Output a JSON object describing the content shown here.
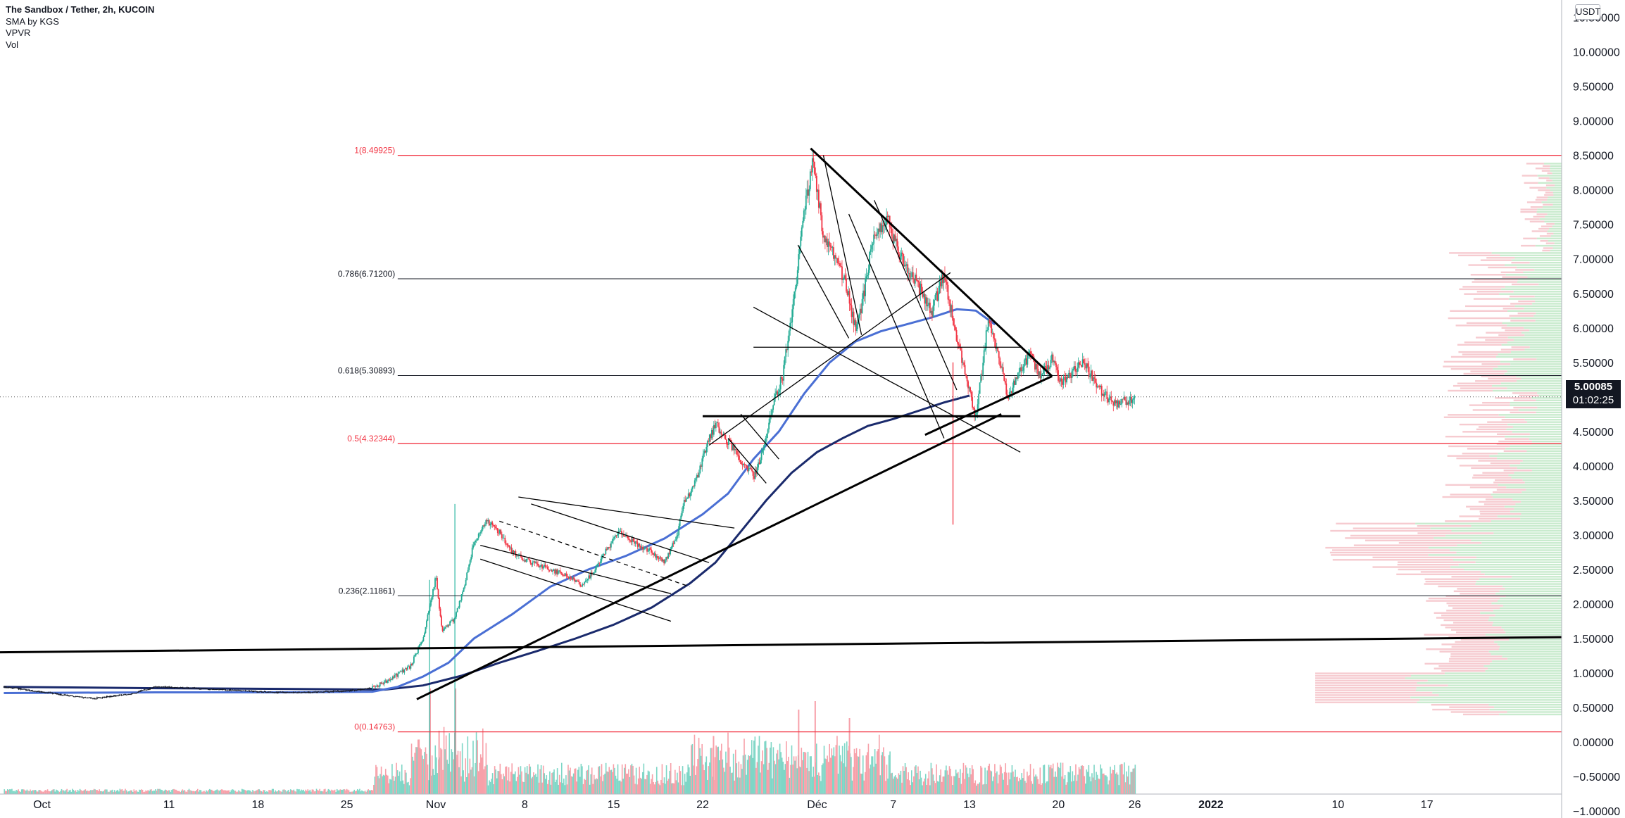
{
  "legend": {
    "title": "The Sandbox / Tether, 2h, KUCOIN",
    "line2": "SMA by KGS",
    "line3": "VPVR",
    "line4": "Vol"
  },
  "currency_badge": "USDT",
  "last_price": {
    "price": "5.00085",
    "countdown": "01:02:25",
    "bg": "#131722",
    "fg": "#ffffff"
  },
  "colors": {
    "fib_red": "#f23645",
    "fib_pink": "#f7a9b3",
    "sma_fast": "#4a6fd4",
    "sma_slow": "#1a2a6c",
    "trend": "#000000",
    "vol_up": "#7ed6c6",
    "vol_down": "#f7a0a9",
    "vpvr_up": "#bfe8c6",
    "vpvr_down": "#f5c2c8"
  },
  "fib_labels": [
    {
      "text": "1(8.49925)",
      "price": 8.49925,
      "color": "#f23645"
    },
    {
      "text": "0.786(6.71200)",
      "price": 6.712,
      "color": "#131722"
    },
    {
      "text": "0.618(5.30893)",
      "price": 5.30893,
      "color": "#131722"
    },
    {
      "text": "0.5(4.32344)",
      "price": 4.32344,
      "color": "#f23645"
    },
    {
      "text": "0.236(2.11861)",
      "price": 2.11861,
      "color": "#131722"
    },
    {
      "text": "0(0.14763)",
      "price": 0.14763,
      "color": "#f23645"
    }
  ],
  "chart_data": {
    "type": "candlestick",
    "title": "The Sandbox / Tether, 2h, KUCOIN",
    "x_unit": "day (Oct 1 = 1, Nov 1 = 32, Dec 1 = 62, Jan 1 2022 = 93)",
    "x_tick_labels": [
      {
        "label": "Oct",
        "x": 1
      },
      {
        "label": "11",
        "x": 11
      },
      {
        "label": "18",
        "x": 18
      },
      {
        "label": "25",
        "x": 25
      },
      {
        "label": "Nov",
        "x": 32
      },
      {
        "label": "8",
        "x": 39
      },
      {
        "label": "15",
        "x": 46
      },
      {
        "label": "22",
        "x": 53
      },
      {
        "label": "Déc",
        "x": 62
      },
      {
        "label": "7",
        "x": 68
      },
      {
        "label": "13",
        "x": 74
      },
      {
        "label": "20",
        "x": 81
      },
      {
        "label": "26",
        "x": 87
      },
      {
        "label": "2022",
        "x": 93
      },
      {
        "label": "10",
        "x": 103
      },
      {
        "label": "17",
        "x": 110
      }
    ],
    "y_tick_labels": [
      "10.50000",
      "10.00000",
      "9.50000",
      "9.00000",
      "8.50000",
      "8.00000",
      "7.50000",
      "7.00000",
      "6.50000",
      "6.00000",
      "5.50000",
      "5.00000",
      "4.50000",
      "4.00000",
      "3.50000",
      "3.00000",
      "2.50000",
      "2.00000",
      "1.50000",
      "1.00000",
      "0.50000",
      "0.00000",
      "−0.50000",
      "−1.00000"
    ],
    "y_ticks": [
      10.5,
      10,
      9.5,
      9,
      8.5,
      8,
      7.5,
      7,
      6.5,
      6,
      5.5,
      5,
      4.5,
      4,
      3.5,
      3,
      2.5,
      2,
      1.5,
      1,
      0.5,
      0,
      -0.5,
      -1
    ],
    "y_range": [
      -1.1,
      10.75
    ],
    "x_range": [
      -2.3,
      120.6
    ],
    "price_path": [
      [
        -2,
        0.8
      ],
      [
        2,
        0.7
      ],
      [
        5,
        0.63
      ],
      [
        8,
        0.7
      ],
      [
        10,
        0.8
      ],
      [
        13,
        0.78
      ],
      [
        16,
        0.75
      ],
      [
        19,
        0.72
      ],
      [
        22,
        0.72
      ],
      [
        25,
        0.74
      ],
      [
        27,
        0.78
      ],
      [
        28.5,
        0.92
      ],
      [
        30,
        1.1
      ],
      [
        31,
        1.5
      ],
      [
        32,
        2.4
      ],
      [
        32.5,
        1.6
      ],
      [
        33.5,
        1.8
      ],
      [
        34.3,
        2.3
      ],
      [
        35,
        2.9
      ],
      [
        36,
        3.2
      ],
      [
        37,
        3.05
      ],
      [
        38,
        2.75
      ],
      [
        39.5,
        2.6
      ],
      [
        41,
        2.5
      ],
      [
        42.5,
        2.4
      ],
      [
        43.5,
        2.25
      ],
      [
        44.5,
        2.5
      ],
      [
        45.5,
        2.8
      ],
      [
        46.5,
        3.05
      ],
      [
        47.5,
        2.9
      ],
      [
        49,
        2.75
      ],
      [
        50,
        2.6
      ],
      [
        51,
        3.0
      ],
      [
        51.5,
        3.45
      ],
      [
        52.5,
        3.8
      ],
      [
        53.3,
        4.3
      ],
      [
        54,
        4.6
      ],
      [
        55,
        4.35
      ],
      [
        56,
        4.1
      ],
      [
        57,
        3.85
      ],
      [
        57.5,
        4.05
      ],
      [
        58.5,
        4.9
      ],
      [
        59.3,
        5.3
      ],
      [
        60.3,
        6.6
      ],
      [
        61,
        7.7
      ],
      [
        61.7,
        8.45
      ],
      [
        62.5,
        7.3
      ],
      [
        63.5,
        7.0
      ],
      [
        64.3,
        6.6
      ],
      [
        65,
        6.0
      ],
      [
        65.5,
        6.3
      ],
      [
        66.4,
        7.3
      ],
      [
        67.5,
        7.6
      ],
      [
        68.2,
        7.2
      ],
      [
        69.3,
        6.8
      ],
      [
        70.3,
        6.5
      ],
      [
        71,
        6.2
      ],
      [
        72,
        6.8
      ],
      [
        72.6,
        6.2
      ],
      [
        73.3,
        5.6
      ],
      [
        74,
        5.1
      ],
      [
        74.5,
        4.7
      ],
      [
        75.5,
        6.15
      ],
      [
        76.3,
        5.6
      ],
      [
        77,
        5.0
      ],
      [
        78,
        5.4
      ],
      [
        78.8,
        5.6
      ],
      [
        79.6,
        5.3
      ],
      [
        80.5,
        5.55
      ],
      [
        81.2,
        5.2
      ],
      [
        82,
        5.35
      ],
      [
        83,
        5.5
      ],
      [
        83.6,
        5.3
      ],
      [
        84.5,
        5.05
      ],
      [
        85.5,
        4.9
      ],
      [
        86.5,
        4.95
      ],
      [
        87,
        5.0
      ]
    ],
    "sma_fast_path": [
      [
        -2,
        0.71
      ],
      [
        10,
        0.72
      ],
      [
        20,
        0.72
      ],
      [
        27,
        0.73
      ],
      [
        29,
        0.8
      ],
      [
        31,
        0.95
      ],
      [
        33,
        1.15
      ],
      [
        35,
        1.5
      ],
      [
        38,
        1.85
      ],
      [
        41,
        2.25
      ],
      [
        44,
        2.5
      ],
      [
        47,
        2.7
      ],
      [
        50,
        2.95
      ],
      [
        53,
        3.3
      ],
      [
        55,
        3.6
      ],
      [
        57,
        4.1
      ],
      [
        59,
        4.5
      ],
      [
        61,
        5.05
      ],
      [
        63,
        5.5
      ],
      [
        65,
        5.8
      ],
      [
        67,
        5.95
      ],
      [
        69,
        6.05
      ],
      [
        71,
        6.15
      ],
      [
        73,
        6.27
      ],
      [
        74.5,
        6.25
      ],
      [
        76,
        6.05
      ]
    ],
    "sma_slow_path": [
      [
        -2,
        0.8
      ],
      [
        10,
        0.78
      ],
      [
        20,
        0.77
      ],
      [
        28,
        0.76
      ],
      [
        31,
        0.82
      ],
      [
        34,
        0.96
      ],
      [
        37,
        1.15
      ],
      [
        40,
        1.32
      ],
      [
        43,
        1.5
      ],
      [
        46,
        1.7
      ],
      [
        49,
        1.95
      ],
      [
        52,
        2.3
      ],
      [
        54,
        2.6
      ],
      [
        56,
        3.05
      ],
      [
        58,
        3.5
      ],
      [
        60,
        3.9
      ],
      [
        62,
        4.2
      ],
      [
        64,
        4.4
      ],
      [
        66,
        4.58
      ],
      [
        68,
        4.68
      ],
      [
        70,
        4.8
      ],
      [
        72,
        4.92
      ],
      [
        74,
        5.02
      ]
    ],
    "fib_levels": [
      {
        "ratio": 1,
        "price": 8.49925
      },
      {
        "ratio": 0.786,
        "price": 6.712
      },
      {
        "ratio": 0.618,
        "price": 5.30893
      },
      {
        "ratio": 0.5,
        "price": 4.32344
      },
      {
        "ratio": 0.236,
        "price": 2.11861
      },
      {
        "ratio": 0,
        "price": 0.14763
      }
    ],
    "trendlines": [
      {
        "style": "thick",
        "from": [
          -2.3,
          1.3
        ],
        "to": [
          120.6,
          1.52
        ]
      },
      {
        "style": "thick",
        "from": [
          30.5,
          0.62
        ],
        "to": [
          76.5,
          4.75
        ]
      },
      {
        "style": "thick",
        "from": [
          61.5,
          8.6
        ],
        "to": [
          80.5,
          5.3
        ]
      },
      {
        "style": "thick",
        "from": [
          80.5,
          5.3
        ],
        "to": [
          70.5,
          4.45
        ]
      },
      {
        "style": "thick",
        "from": [
          53,
          4.72
        ],
        "to": [
          78,
          4.72
        ]
      },
      {
        "style": "thin",
        "from": [
          53.5,
          4.3
        ],
        "to": [
          72.5,
          6.8
        ]
      },
      {
        "style": "thin",
        "from": [
          57,
          6.3
        ],
        "to": [
          78,
          4.2
        ]
      },
      {
        "style": "thin",
        "from": [
          57,
          5.72
        ],
        "to": [
          78,
          5.72
        ]
      },
      {
        "style": "thin",
        "from": [
          38.5,
          3.55
        ],
        "to": [
          55.5,
          3.1
        ]
      },
      {
        "style": "thin",
        "from": [
          35.5,
          2.85
        ],
        "to": [
          50.5,
          2.15
        ]
      },
      {
        "style": "thin",
        "from": [
          39.5,
          3.45
        ],
        "to": [
          53.5,
          2.6
        ]
      },
      {
        "style": "thin",
        "from": [
          35.5,
          2.65
        ],
        "to": [
          50.5,
          1.75
        ]
      },
      {
        "style": "dashed",
        "from": [
          37,
          3.2
        ],
        "to": [
          52,
          2.25
        ]
      },
      {
        "style": "thin",
        "from": [
          56,
          4.75
        ],
        "to": [
          59,
          4.1
        ]
      },
      {
        "style": "thin",
        "from": [
          55,
          4.4
        ],
        "to": [
          58,
          3.75
        ]
      },
      {
        "style": "thin",
        "from": [
          62.5,
          8.5
        ],
        "to": [
          65.5,
          5.9
        ]
      },
      {
        "style": "thin",
        "from": [
          60.5,
          7.2
        ],
        "to": [
          64.5,
          5.85
        ]
      },
      {
        "style": "thin",
        "from": [
          66.5,
          7.85
        ],
        "to": [
          73,
          5.1
        ]
      },
      {
        "style": "thin",
        "from": [
          64.5,
          7.65
        ],
        "to": [
          72,
          4.4
        ]
      }
    ],
    "volume_spikes": [
      {
        "x": 31.5,
        "v": 1.0
      },
      {
        "x": 33.5,
        "v": 1.0
      },
      {
        "x": 32.2,
        "v": 0.6
      },
      {
        "x": 60.5,
        "v": 0.8
      },
      {
        "x": 61.8,
        "v": 0.88
      },
      {
        "x": 64.5,
        "v": 0.72
      },
      {
        "x": 53.8,
        "v": 0.55
      }
    ]
  }
}
